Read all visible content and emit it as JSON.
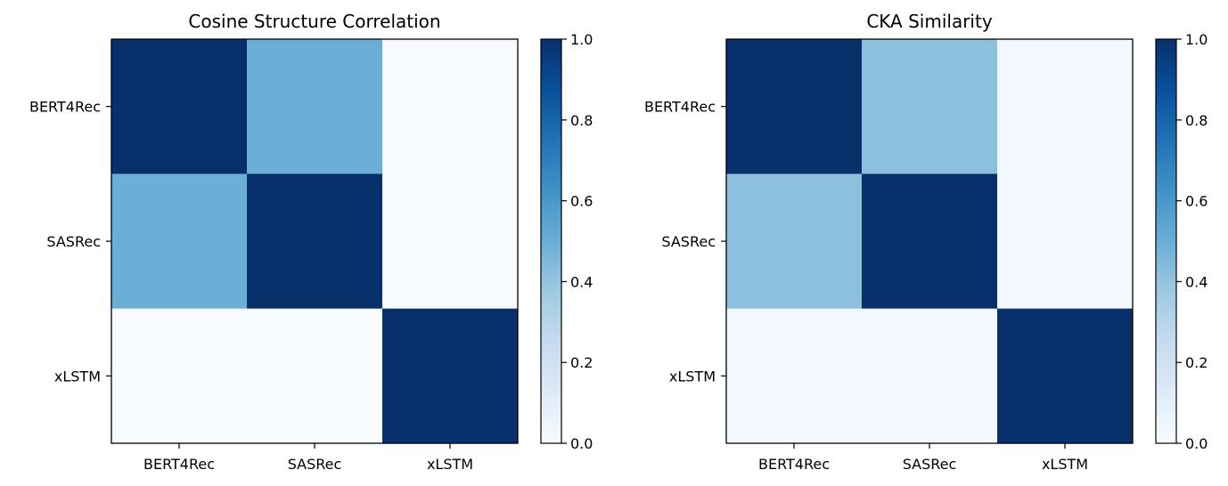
{
  "chart_data": [
    {
      "type": "heatmap",
      "title": "Cosine Structure Correlation",
      "x_categories": [
        "BERT4Rec",
        "SASRec",
        "xLSTM"
      ],
      "y_categories": [
        "BERT4Rec",
        "SASRec",
        "xLSTM"
      ],
      "values": [
        [
          1.0,
          0.5,
          0.0
        ],
        [
          0.5,
          1.0,
          0.0
        ],
        [
          0.0,
          0.0,
          1.0
        ]
      ],
      "colorbar": {
        "range": [
          0,
          1.0
        ],
        "ticks": [
          "0.0",
          "0.2",
          "0.4",
          "0.6",
          "0.8",
          "1.0"
        ]
      },
      "colormap": "Blues"
    },
    {
      "type": "heatmap",
      "title": "CKA Similarity",
      "x_categories": [
        "BERT4Rec",
        "SASRec",
        "xLSTM"
      ],
      "y_categories": [
        "BERT4Rec",
        "SASRec",
        "xLSTM"
      ],
      "values": [
        [
          1.0,
          0.42,
          0.02
        ],
        [
          0.42,
          1.0,
          0.02
        ],
        [
          0.02,
          0.02,
          1.0
        ]
      ],
      "colorbar": {
        "range": [
          0,
          1.0
        ],
        "ticks": [
          "0.0",
          "0.2",
          "0.4",
          "0.6",
          "0.8",
          "1.0"
        ]
      },
      "colormap": "Blues"
    }
  ]
}
